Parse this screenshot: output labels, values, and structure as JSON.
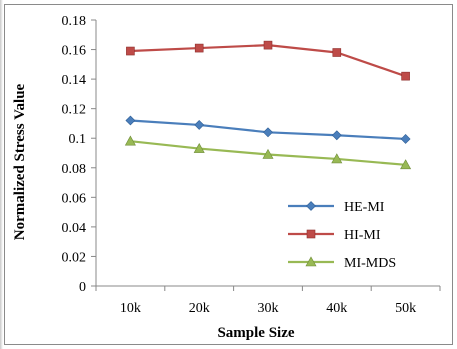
{
  "chart_data": {
    "type": "line",
    "categories": [
      "10k",
      "20k",
      "30k",
      "40k",
      "50k"
    ],
    "xlabel": "Sample Size",
    "ylabel": "Normalized Stress Value",
    "ylim": [
      0,
      0.18
    ],
    "yticks": [
      "0",
      "0.02",
      "0.04",
      "0.06",
      "0.08",
      "0.1",
      "0.12",
      "0.14",
      "0.16",
      "0.18"
    ],
    "grid": false,
    "legend_position": "bottom-right",
    "series": [
      {
        "name": "HE-MI",
        "values": [
          0.112,
          0.109,
          0.104,
          0.102,
          0.0995
        ],
        "color": "#4a7ebb",
        "marker": "diamond"
      },
      {
        "name": "HI-MI",
        "values": [
          0.159,
          0.161,
          0.163,
          0.158,
          0.142
        ],
        "color": "#be4b48",
        "marker": "square"
      },
      {
        "name": "MI-MDS",
        "values": [
          0.098,
          0.093,
          0.089,
          0.086,
          0.082
        ],
        "color": "#98b954",
        "marker": "triangle"
      }
    ]
  }
}
